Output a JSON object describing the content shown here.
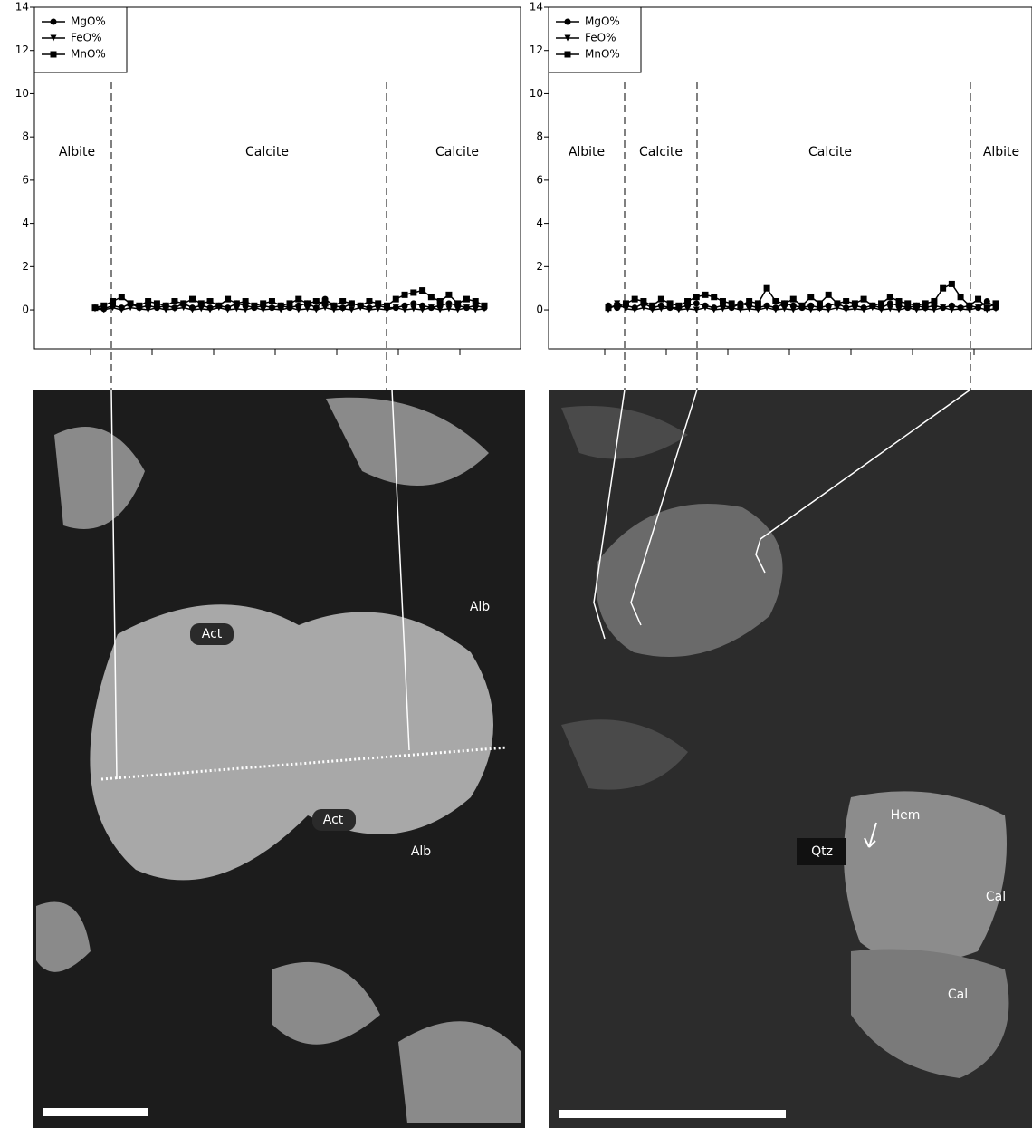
{
  "chart_data": [
    {
      "type": "line",
      "ylim": [
        -1.8,
        14
      ],
      "yticks": [
        0,
        2,
        4,
        6,
        8,
        10,
        12,
        14
      ],
      "zones": [
        "Albite",
        "Calcite",
        "Calcite"
      ],
      "series": [
        {
          "name": "MgO%",
          "color": "#000000",
          "marker": "circle",
          "values": [
            0.1,
            0.05,
            0.2,
            0.1,
            0.3,
            0.1,
            0.2,
            0.1,
            0.2,
            0.1,
            0.3,
            0.1,
            0.2,
            0.1,
            0.2,
            0.1,
            0.3,
            0.2,
            0.1,
            0.2,
            0.1,
            0.2,
            0.1,
            0.2,
            0.3,
            0.1,
            0.5,
            0.2,
            0.1,
            0.3,
            0.2,
            0.1,
            0.2,
            0.1,
            0.1,
            0.2,
            0.3,
            0.2,
            0.1,
            0.2,
            0.3,
            0.2,
            0.1,
            0.2,
            0.1
          ]
        },
        {
          "name": "FeO%",
          "color": "#000000",
          "marker": "triangle",
          "values": [
            0.05,
            0,
            0.1,
            0,
            0.1,
            0.05,
            0,
            0.1,
            0,
            0.05,
            0.1,
            0,
            0.05,
            0,
            0.1,
            0,
            0.05,
            0,
            0.1,
            0,
            0.05,
            0,
            0.1,
            0,
            0.05,
            0,
            0.1,
            0,
            0.05,
            0,
            0.1,
            0,
            0.05,
            0,
            0.1,
            0,
            0.05,
            0,
            0.1,
            0,
            0.05,
            0,
            0.1,
            0,
            0.05
          ]
        },
        {
          "name": "MnO%",
          "color": "#000000",
          "marker": "square",
          "values": [
            0.1,
            0.2,
            0.4,
            0.6,
            0.3,
            0.2,
            0.4,
            0.3,
            0.2,
            0.4,
            0.3,
            0.5,
            0.3,
            0.4,
            0.2,
            0.5,
            0.3,
            0.4,
            0.2,
            0.3,
            0.4,
            0.2,
            0.3,
            0.5,
            0.3,
            0.4,
            0.3,
            0.2,
            0.4,
            0.3,
            0.2,
            0.4,
            0.3,
            0.2,
            0.5,
            0.7,
            0.8,
            0.9,
            0.6,
            0.4,
            0.7,
            0.3,
            0.5,
            0.4,
            0.2
          ]
        }
      ]
    },
    {
      "type": "line",
      "ylim": [
        -1.8,
        14
      ],
      "yticks": [
        0,
        2,
        4,
        6,
        8,
        10,
        12,
        14
      ],
      "zones": [
        "Albite",
        "Calcite",
        "Calcite",
        "Albite"
      ],
      "series": [
        {
          "name": "MgO%",
          "color": "#000000",
          "marker": "circle",
          "values": [
            0.2,
            0.1,
            0.2,
            0.1,
            0.3,
            0.1,
            0.2,
            0.1,
            0.1,
            0.2,
            0.3,
            0.2,
            0.1,
            0.2,
            0.1,
            0.3,
            0.2,
            0.1,
            0.2,
            0.1,
            0.3,
            0.2,
            0.1,
            0.2,
            0.1,
            0.2,
            0.3,
            0.1,
            0.2,
            0.1,
            0.2,
            0.1,
            0.3,
            0.2,
            0.1,
            0.2,
            0.1,
            0.2,
            0.1,
            0.2,
            0.1,
            0.2,
            0.1,
            0.4,
            0.1
          ]
        },
        {
          "name": "FeO%",
          "color": "#000000",
          "marker": "triangle",
          "values": [
            0,
            0.3,
            0.05,
            0,
            0.1,
            0,
            0.05,
            0.1,
            0,
            0.05,
            0,
            0.1,
            0,
            0.05,
            0.1,
            0,
            0.05,
            0,
            0.1,
            0,
            0.05,
            0,
            0.1,
            0,
            0.05,
            0,
            0.1,
            0,
            0.05,
            0,
            0.1,
            0,
            0.05,
            0,
            0.1,
            0,
            0.05,
            0,
            0.1,
            0,
            0.05,
            0,
            0.1,
            0,
            0.05
          ]
        },
        {
          "name": "MnO%",
          "color": "#000000",
          "marker": "square",
          "values": [
            0.1,
            0.2,
            0.3,
            0.5,
            0.4,
            0.2,
            0.5,
            0.3,
            0.2,
            0.4,
            0.6,
            0.7,
            0.6,
            0.4,
            0.3,
            0.2,
            0.4,
            0.3,
            1.0,
            0.4,
            0.3,
            0.5,
            0.2,
            0.6,
            0.3,
            0.7,
            0.3,
            0.4,
            0.3,
            0.5,
            0.2,
            0.3,
            0.6,
            0.4,
            0.3,
            0.2,
            0.3,
            0.4,
            1.0,
            1.2,
            0.6,
            0.2,
            0.5,
            0.1,
            0.3
          ]
        }
      ]
    }
  ],
  "images": [
    {
      "labels": [
        "Act",
        "Alb",
        "Act",
        "Alb"
      ]
    },
    {
      "labels": [
        "Hem",
        "Qtz",
        "Cal",
        "Cal"
      ]
    }
  ]
}
